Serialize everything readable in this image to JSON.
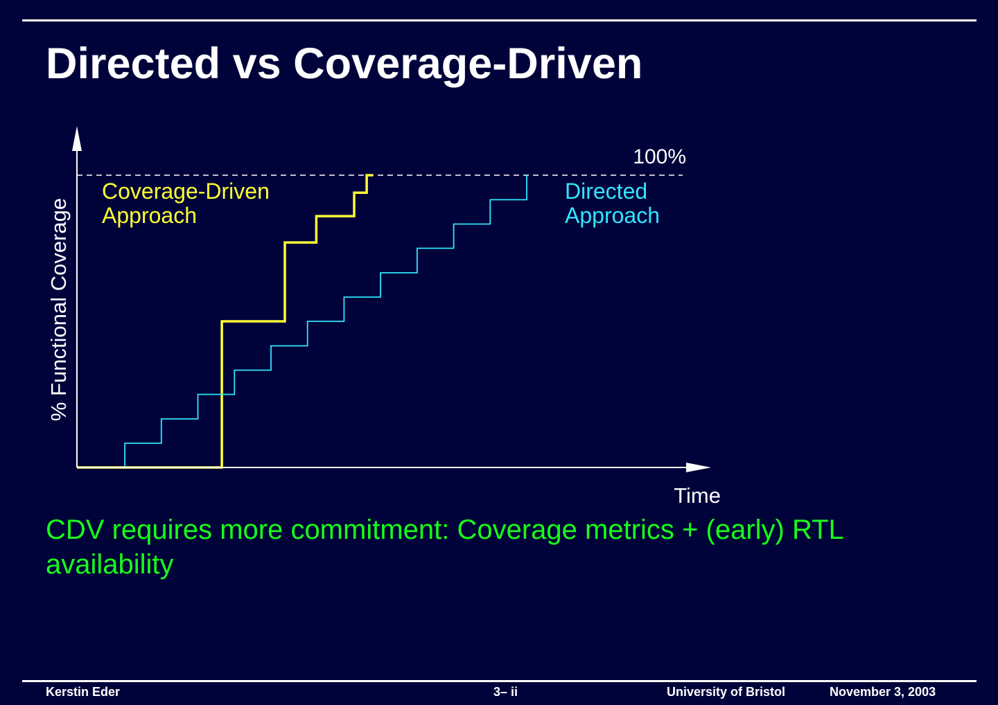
{
  "slide": {
    "title": "Directed vs Coverage-Driven",
    "note": "CDV requires more commitment: Coverage metrics + (early) RTL availability"
  },
  "footer": {
    "author": "Kerstin Eder",
    "page": "3– ii",
    "organization": "University of Bristol",
    "date": "November 3, 2003"
  },
  "colors": {
    "background": "#00033a",
    "coverage_driven": "#ffff33",
    "directed": "#33e5ff",
    "note": "#19ff19",
    "axes": "#ffffff"
  },
  "chart_data": {
    "type": "line",
    "title": "",
    "xlabel": "Time",
    "ylabel": "% Functional Coverage",
    "xlim": [
      0,
      100
    ],
    "ylim": [
      0,
      100
    ],
    "reference_line": {
      "y": 100,
      "label": "100%",
      "style": "dashed"
    },
    "series": [
      {
        "name": "Coverage-Driven",
        "label_lines": [
          "Coverage-Driven",
          "Approach"
        ],
        "step": "post",
        "x": [
          0,
          23,
          33,
          38,
          44,
          46,
          47
        ],
        "y": [
          0,
          50,
          77,
          86,
          94,
          100,
          100
        ],
        "color": "#ffff33"
      },
      {
        "name": "Directed",
        "label_lines": [
          "Directed",
          "Approach"
        ],
        "step": "post",
        "x": [
          0,
          7.6,
          13.4,
          19.2,
          25,
          30.8,
          36.6,
          42.4,
          48.2,
          54,
          59.8,
          65.6,
          71.4
        ],
        "y": [
          0,
          8.3,
          16.6,
          25,
          33.3,
          41.6,
          50,
          58.3,
          66.6,
          75,
          83.3,
          91.6,
          100
        ],
        "color": "#33e5ff"
      }
    ]
  }
}
